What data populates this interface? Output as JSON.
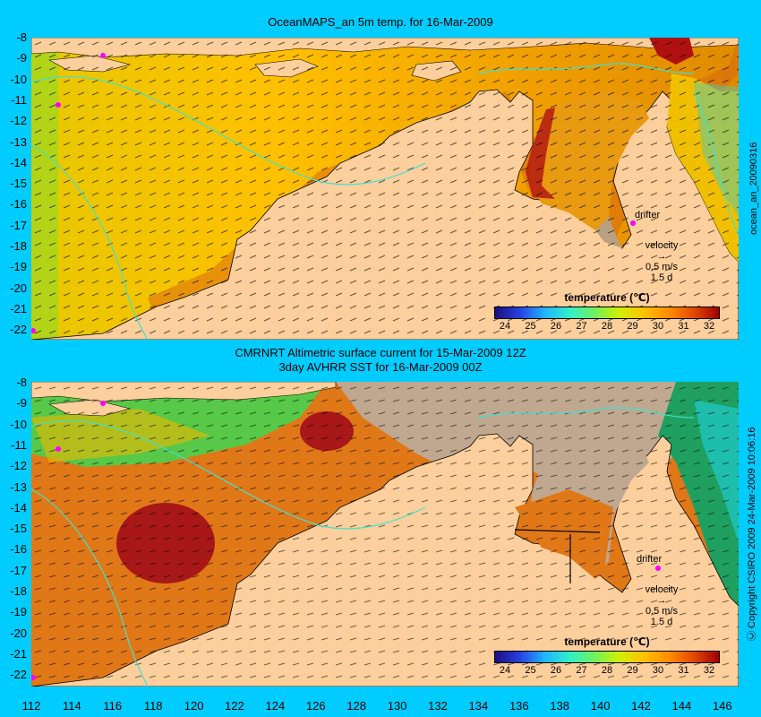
{
  "panels": {
    "top": {
      "title": "OceanMAPS_an 5m temp. for 16-Mar-2009",
      "side_label": "ocean_an_20090316"
    },
    "bottom": {
      "title_line1": "CMRNRT Altimetric surface current for 15-Mar-2009 12Z",
      "title_line2": "3day AVHRR SST for 16-Mar-2009 00Z",
      "side_label": "Ⓒ Copyright CSIRO 2009  24-Mar-2009 10:06:16"
    }
  },
  "axes": {
    "lat_labels": [
      "-8",
      "-9",
      "-10",
      "-11",
      "-12",
      "-13",
      "-14",
      "-15",
      "-16",
      "-17",
      "-18",
      "-19",
      "-20",
      "-21",
      "-22"
    ],
    "lon_labels": [
      "112",
      "114",
      "116",
      "118",
      "120",
      "122",
      "124",
      "126",
      "128",
      "130",
      "132",
      "134",
      "136",
      "138",
      "140",
      "142",
      "144",
      "146"
    ]
  },
  "legend": {
    "title": "temperature (℃)",
    "ticks": [
      "24",
      "25",
      "26",
      "27",
      "28",
      "29",
      "30",
      "31",
      "32"
    ],
    "drifter_label": "drifter",
    "velocity_label": "velocity",
    "velocity_value": "0.5 m/s",
    "velocity_days": "1.5 d"
  },
  "colors": {
    "background": "#00ccff",
    "land": "#fdcf9c",
    "cloud_gray": "#c0a890",
    "drifter": "#ff00ff",
    "isobath": "#40e0d0"
  }
}
